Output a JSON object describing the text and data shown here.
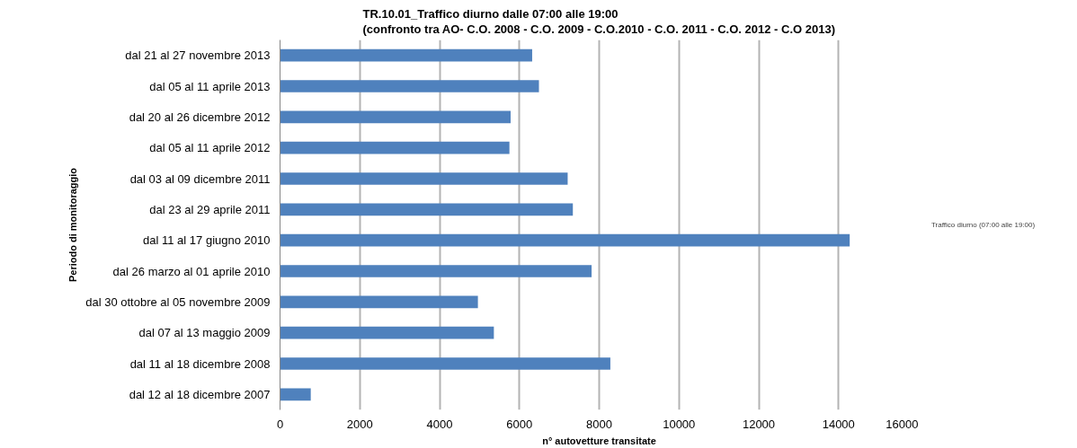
{
  "chart_data": {
    "type": "bar",
    "orientation": "horizontal",
    "title": "TR.10.01_Traffico diurno dalle 07:00 alle 19:00\n(confronto tra AO- C.O. 2008 - C.O. 2009 - C.O.2010 - C.O. 2011 - C.O. 2012 - C.O 2013)",
    "xlabel": "n° autovetture transitate",
    "ylabel": "Periodo di monitoraggio",
    "categories": [
      "dal 21 al 27 novembre 2013",
      "dal 05 al 11 aprile 2013",
      "dal 20 al 26 dicembre 2012",
      "dal 05 al 11 aprile 2012",
      "dal 03 al 09 dicembre 2011",
      "dal 23 al 29 aprile 2011",
      "dal 11 al 17 giugno 2010",
      "dal 26 marzo al 01 aprile 2010",
      "dal 30 ottobre al 05 novembre 2009",
      "dal 07 al 13 maggio 2009",
      "dal 11 al 18 dicembre 2008",
      "dal 12 al 18 dicembre 2007"
    ],
    "series": [
      {
        "name": "Traffico diurno (07:00 alle 19:00)",
        "color": "#4f81bd",
        "values": [
          6320,
          6490,
          5780,
          5750,
          7210,
          7340,
          14280,
          7810,
          4960,
          5360,
          8280,
          770
        ]
      }
    ],
    "xlim": [
      0,
      16000
    ],
    "xticks": [
      0,
      2000,
      4000,
      6000,
      8000,
      10000,
      12000,
      14000,
      16000
    ],
    "grid": "x",
    "legend": "right"
  }
}
